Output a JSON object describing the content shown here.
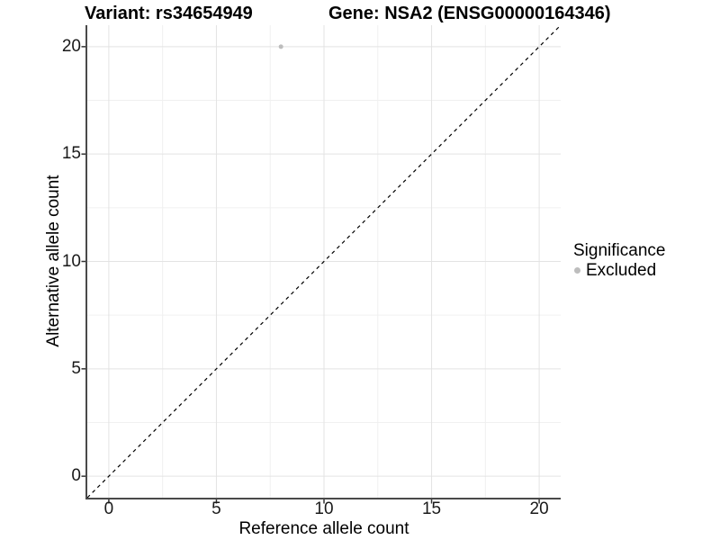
{
  "figure": {
    "title_left": "Variant: rs34654949",
    "title_right": "Gene: NSA2 (ENSG00000164346)"
  },
  "chart_data": {
    "type": "scatter",
    "title": "Variant: rs34654949    Gene: NSA2 (ENSG00000164346)",
    "xlabel": "Reference allele count",
    "ylabel": "Alternative allele count",
    "xlim": [
      -1,
      21
    ],
    "ylim": [
      -1,
      21
    ],
    "x_ticks": [
      0,
      5,
      10,
      15,
      20
    ],
    "y_ticks": [
      0,
      5,
      10,
      15,
      20
    ],
    "x_minor_ticks": [
      2.5,
      7.5,
      12.5,
      17.5
    ],
    "y_minor_ticks": [
      2.5,
      7.5,
      12.5,
      17.5
    ],
    "grid": "major and minor gridlines, no top/right border",
    "legend_position": "right",
    "series": [
      {
        "name": "Excluded",
        "marker": "circle",
        "color": "#bdbdbd",
        "points": [
          [
            8,
            20
          ]
        ]
      }
    ],
    "reference_line": {
      "type": "identity y=x",
      "linestyle": "dashed",
      "color": "#000000",
      "x1": -1,
      "y1": -1,
      "x2": 21,
      "y2": 21
    }
  },
  "legend": {
    "title": "Significance",
    "items": [
      {
        "label": "Excluded",
        "color": "#bdbdbd"
      }
    ]
  },
  "colors": {
    "background": "#ffffff",
    "grid_major": "#e3e3e3",
    "grid_minor": "#f0f0f0",
    "axis_line": "#4a4a4a",
    "tick_mark": "#333333",
    "tick_text": "#1a1a1a",
    "point": "#bdbdbd",
    "dashed_line": "#000000"
  }
}
